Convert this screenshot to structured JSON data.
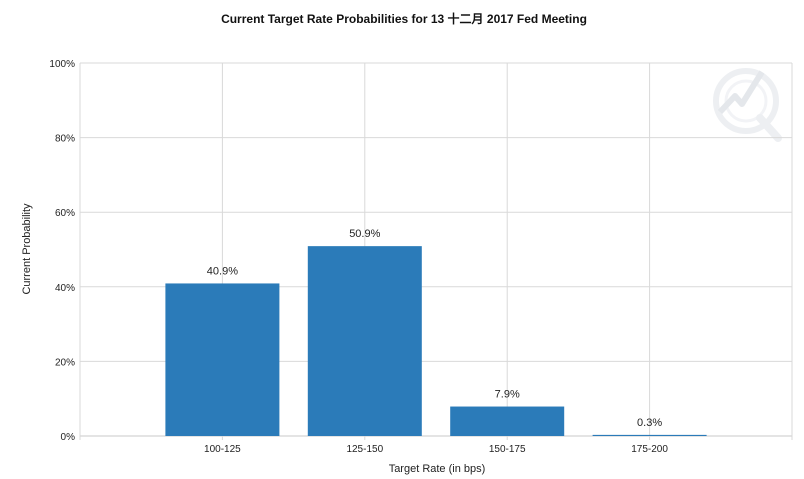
{
  "chart_data": {
    "type": "bar",
    "title": "Current Target Rate Probabilities for 13 十二月 2017  Fed Meeting",
    "xlabel": "Target Rate (in bps)",
    "ylabel": "Current Probability",
    "categories": [
      "100-125",
      "125-150",
      "150-175",
      "175-200"
    ],
    "values": [
      40.9,
      50.9,
      7.9,
      0.3
    ],
    "data_labels": [
      "40.9%",
      "50.9%",
      "7.9%",
      "0.3%"
    ],
    "ylim": [
      0,
      100
    ],
    "yticks": [
      "0%",
      "20%",
      "40%",
      "60%",
      "80%",
      "100%"
    ],
    "grid": true,
    "legend": "none",
    "colors": {
      "bar": "#2b7bb9",
      "grid": "#d9d9d9",
      "axis": "#c8c8c8",
      "watermark": "#dfe3e8"
    },
    "watermark_icon": "quandl-q-lightning-watermark"
  }
}
